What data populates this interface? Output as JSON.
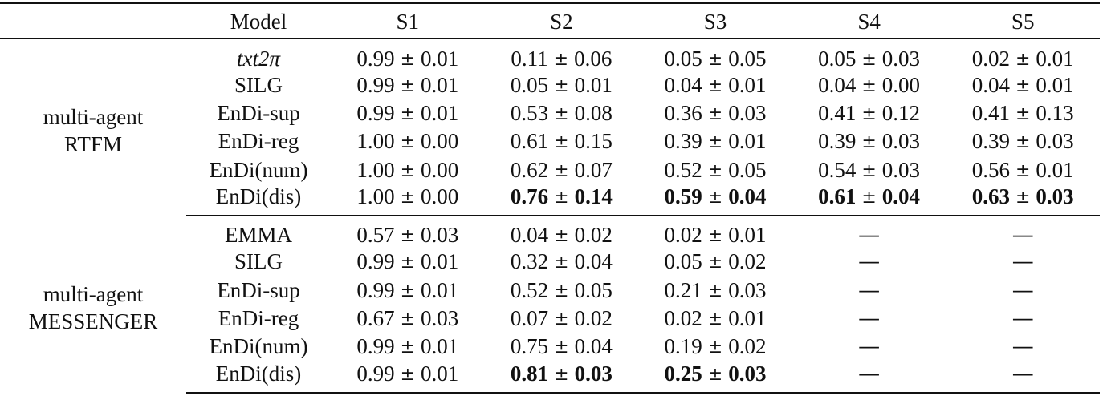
{
  "table": {
    "headers": {
      "group": "",
      "model": "Model",
      "s": [
        "S1",
        "S2",
        "S3",
        "S4",
        "S5"
      ]
    },
    "pm_symbol": "±",
    "groups": [
      {
        "name_line1": "multi-agent",
        "name_line2": "RTFM",
        "rows": [
          {
            "model": "txt2π",
            "model_style": "italic",
            "cells": [
              {
                "mean": "0.99",
                "std": "0.01",
                "bold": false
              },
              {
                "mean": "0.11",
                "std": "0.06",
                "bold": false
              },
              {
                "mean": "0.05",
                "std": "0.05",
                "bold": false
              },
              {
                "mean": "0.05",
                "std": "0.03",
                "bold": false
              },
              {
                "mean": "0.02",
                "std": "0.01",
                "bold": false
              }
            ]
          },
          {
            "model": "SILG",
            "cells": [
              {
                "mean": "0.99",
                "std": "0.01",
                "bold": false
              },
              {
                "mean": "0.05",
                "std": "0.01",
                "bold": false
              },
              {
                "mean": "0.04",
                "std": "0.01",
                "bold": false
              },
              {
                "mean": "0.04",
                "std": "0.00",
                "bold": false
              },
              {
                "mean": "0.04",
                "std": "0.01",
                "bold": false
              }
            ]
          },
          {
            "model": "EnDi-sup",
            "cells": [
              {
                "mean": "0.99",
                "std": "0.01",
                "bold": false
              },
              {
                "mean": "0.53",
                "std": "0.08",
                "bold": false
              },
              {
                "mean": "0.36",
                "std": "0.03",
                "bold": false
              },
              {
                "mean": "0.41",
                "std": "0.12",
                "bold": false
              },
              {
                "mean": "0.41",
                "std": "0.13",
                "bold": false
              }
            ]
          },
          {
            "model": "EnDi-reg",
            "cells": [
              {
                "mean": "1.00",
                "std": "0.00",
                "bold": false
              },
              {
                "mean": "0.61",
                "std": "0.15",
                "bold": false
              },
              {
                "mean": "0.39",
                "std": "0.01",
                "bold": false
              },
              {
                "mean": "0.39",
                "std": "0.03",
                "bold": false
              },
              {
                "mean": "0.39",
                "std": "0.03",
                "bold": false
              }
            ]
          },
          {
            "model": "EnDi(num)",
            "cells": [
              {
                "mean": "1.00",
                "std": "0.00",
                "bold": false
              },
              {
                "mean": "0.62",
                "std": "0.07",
                "bold": false
              },
              {
                "mean": "0.52",
                "std": "0.05",
                "bold": false
              },
              {
                "mean": "0.54",
                "std": "0.03",
                "bold": false
              },
              {
                "mean": "0.56",
                "std": "0.01",
                "bold": false
              }
            ]
          },
          {
            "model": "EnDi(dis)",
            "cells": [
              {
                "mean": "1.00",
                "std": "0.00",
                "bold": false
              },
              {
                "mean": "0.76",
                "std": "0.14",
                "bold": true
              },
              {
                "mean": "0.59",
                "std": "0.04",
                "bold": true
              },
              {
                "mean": "0.61",
                "std": "0.04",
                "bold": true
              },
              {
                "mean": "0.63",
                "std": "0.03",
                "bold": true
              }
            ]
          }
        ]
      },
      {
        "name_line1": "multi-agent",
        "name_line2": "MESSENGER",
        "rows": [
          {
            "model": "EMMA",
            "cells": [
              {
                "mean": "0.57",
                "std": "0.03",
                "bold": false
              },
              {
                "mean": "0.04",
                "std": "0.02",
                "bold": false
              },
              {
                "mean": "0.02",
                "std": "0.01",
                "bold": false
              },
              {
                "dash": "—"
              },
              {
                "dash": "—"
              }
            ]
          },
          {
            "model": "SILG",
            "cells": [
              {
                "mean": "0.99",
                "std": "0.01",
                "bold": false
              },
              {
                "mean": "0.32",
                "std": "0.04",
                "bold": false
              },
              {
                "mean": "0.05",
                "std": "0.02",
                "bold": false
              },
              {
                "dash": "—"
              },
              {
                "dash": "—"
              }
            ]
          },
          {
            "model": "EnDi-sup",
            "cells": [
              {
                "mean": "0.99",
                "std": "0.01",
                "bold": false
              },
              {
                "mean": "0.52",
                "std": "0.05",
                "bold": false
              },
              {
                "mean": "0.21",
                "std": "0.03",
                "bold": false
              },
              {
                "dash": "—"
              },
              {
                "dash": "—"
              }
            ]
          },
          {
            "model": "EnDi-reg",
            "cells": [
              {
                "mean": "0.67",
                "std": "0.03",
                "bold": false
              },
              {
                "mean": "0.07",
                "std": "0.02",
                "bold": false
              },
              {
                "mean": "0.02",
                "std": "0.01",
                "bold": false
              },
              {
                "dash": "—"
              },
              {
                "dash": "—"
              }
            ]
          },
          {
            "model": "EnDi(num)",
            "cells": [
              {
                "mean": "0.99",
                "std": "0.01",
                "bold": false
              },
              {
                "mean": "0.75",
                "std": "0.04",
                "bold": false
              },
              {
                "mean": "0.19",
                "std": "0.02",
                "bold": false
              },
              {
                "dash": "—"
              },
              {
                "dash": "—"
              }
            ]
          },
          {
            "model": "EnDi(dis)",
            "cells": [
              {
                "mean": "0.99",
                "std": "0.01",
                "bold": false
              },
              {
                "mean": "0.81",
                "std": "0.03",
                "bold": true
              },
              {
                "mean": "0.25",
                "std": "0.03",
                "bold": true
              },
              {
                "dash": "—"
              },
              {
                "dash": "—"
              }
            ]
          }
        ]
      }
    ]
  }
}
